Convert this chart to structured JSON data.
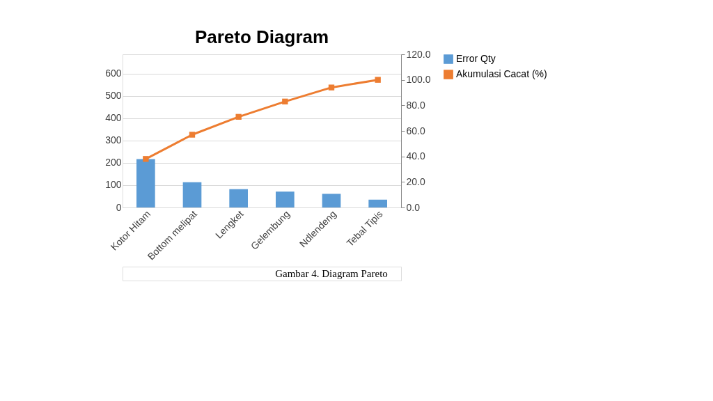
{
  "chart_data": {
    "type": "bar",
    "title": "Pareto Diagram",
    "categories": [
      "Kotor Hitam",
      "Bottom melipat",
      "Lengket",
      "Gelembung",
      "Ndlendeng",
      "Tebal Tipis"
    ],
    "series": [
      {
        "name": "Error Qty",
        "color": "#5b9bd5",
        "values": [
          217,
          113,
          82,
          71,
          61,
          35
        ]
      },
      {
        "name": "Akumulasi Cacat (%)",
        "type": "line",
        "axis": "y2",
        "color": "#ed7d31",
        "marker": "square",
        "values": [
          38,
          57,
          71,
          83,
          94,
          100
        ]
      }
    ],
    "ylim": [
      0,
      686
    ],
    "yticks": [
      0,
      100,
      200,
      300,
      400,
      500,
      600
    ],
    "y2lim": [
      0,
      120
    ],
    "y2ticks": [
      {
        "value": 0,
        "label": "0.0"
      },
      {
        "value": 20,
        "label": "20.0"
      },
      {
        "value": 40,
        "label": "40.0"
      },
      {
        "value": 60,
        "label": "60.0"
      },
      {
        "value": 80,
        "label": "80.0"
      },
      {
        "value": 100,
        "label": "100.0"
      },
      {
        "value": 120,
        "label": "120.0"
      }
    ],
    "grid": "y",
    "legend": "right",
    "annotations": [
      "Gambar 4. Diagram Pareto"
    ]
  }
}
